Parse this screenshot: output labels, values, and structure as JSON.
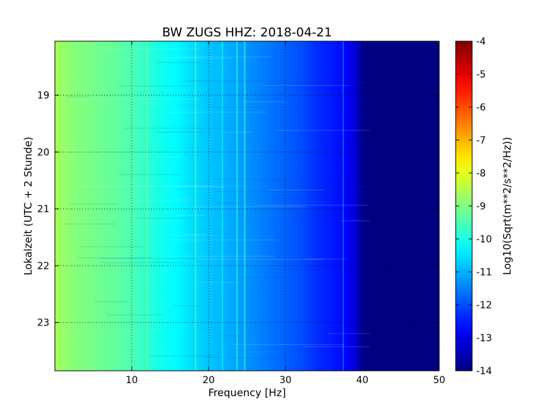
{
  "chart_data": {
    "type": "heatmap",
    "title": "BW ZUGS HHZ: 2018-04-21",
    "xlabel": "Frequency [Hz]",
    "ylabel": "Lokalzeit (UTC + 2 Stunde)",
    "colorbar_label": "Log10(Sqrt(m**2/s**2/Hz))",
    "colormap": "jet",
    "grid": true,
    "xlim": [
      0,
      50
    ],
    "ylim": [
      23.85,
      18.05
    ],
    "x_ticks": [
      "10",
      "20",
      "30",
      "40",
      "50"
    ],
    "y_ticks": [
      "19",
      "20",
      "21",
      "22",
      "23"
    ],
    "colorbar_range": [
      -14,
      -4
    ],
    "colorbar_ticks": [
      "-4",
      "-5",
      "-6",
      "-7",
      "-8",
      "-9",
      "-10",
      "-11",
      "-12",
      "-13",
      "-14"
    ],
    "frequency_profile": {
      "frequency_hz": [
        0,
        2,
        5,
        8,
        10,
        12,
        14,
        16,
        18,
        20,
        22,
        24,
        26,
        28,
        30,
        32,
        34,
        36,
        38,
        39,
        39.7,
        40.5,
        42,
        50
      ],
      "log10_amplitude": [
        -8.6,
        -8.9,
        -9.1,
        -9.3,
        -9.5,
        -9.8,
        -10.1,
        -10.3,
        -10.6,
        -10.8,
        -11.0,
        -11.2,
        -11.4,
        -11.6,
        -11.8,
        -12.0,
        -12.3,
        -12.5,
        -12.8,
        -13.1,
        -13.6,
        -14.0,
        -14.0,
        -14.0
      ]
    },
    "spectral_lines": [
      {
        "frequency_hz": 12.0,
        "log10_amplitude": -9.1
      },
      {
        "frequency_hz": 18.3,
        "log10_amplitude": -9.6
      },
      {
        "frequency_hz": 21.8,
        "log10_amplitude": -10.3
      },
      {
        "frequency_hz": 23.7,
        "log10_amplitude": -10.0
      },
      {
        "frequency_hz": 24.7,
        "log10_amplitude": -9.9
      },
      {
        "frequency_hz": 37.5,
        "log10_amplitude": -11.6
      }
    ]
  }
}
